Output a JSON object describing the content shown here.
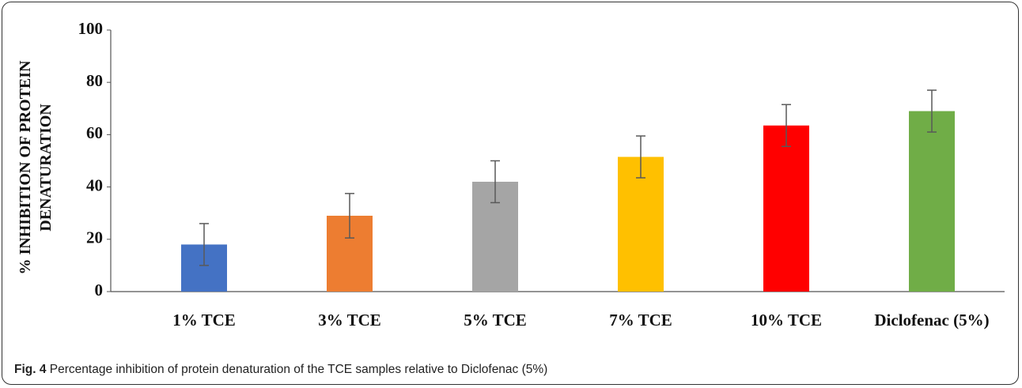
{
  "chart_data": {
    "type": "bar",
    "y_label": "% INHIBITION OF PROTEIN DENATURATION",
    "categories": [
      "1% TCE",
      "3% TCE",
      "5% TCE",
      "7% TCE",
      "10% TCE",
      "Diclofenac (5%)"
    ],
    "series": [
      {
        "name": null,
        "colors": [
          "#4472c4",
          "#ed7d31",
          "#a5a5a5",
          "#ffc000",
          "#ff0000",
          "#70ad47"
        ],
        "values": [
          18,
          29,
          42,
          51.5,
          63.5,
          69
        ],
        "errors": [
          8,
          8.5,
          8,
          8,
          8,
          8
        ]
      }
    ],
    "ylim": [
      0,
      100
    ],
    "yticks": [
      0,
      20,
      40,
      60,
      80,
      100
    ],
    "grid": false,
    "error_color": "#595959"
  },
  "caption": {
    "label": "Fig. 4",
    "text": "Percentage inhibition of protein denaturation of the TCE samples relative to Diclofenac (5%)"
  }
}
